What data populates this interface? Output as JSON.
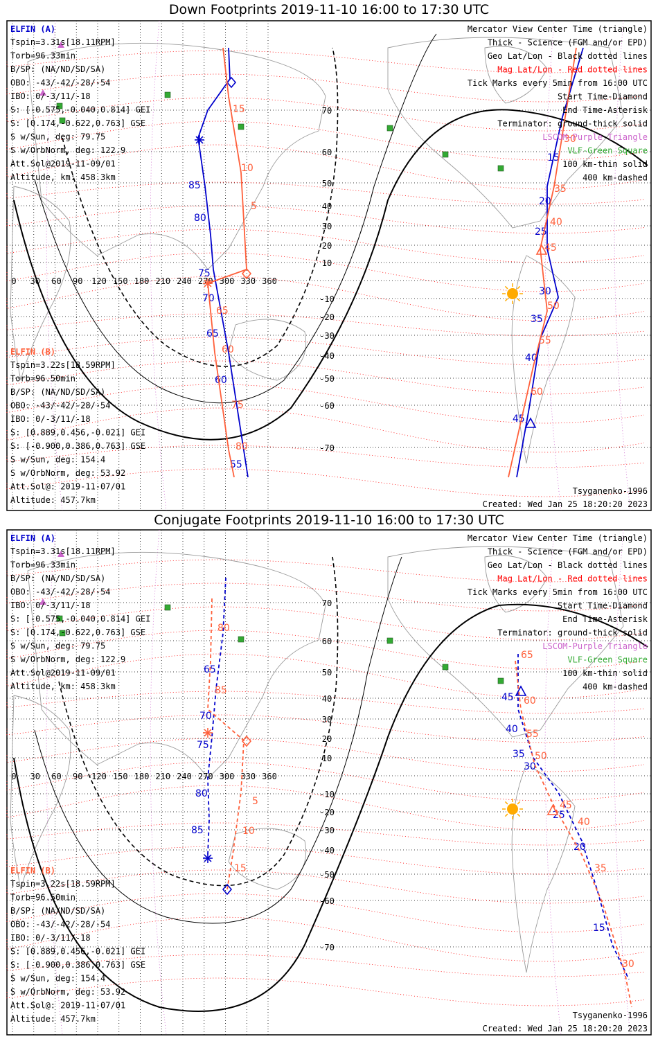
{
  "colors": {
    "elfin_a": "#0000cc",
    "elfin_b": "#ff5f3a",
    "geo_grid": "#000000",
    "mag_grid": "#ff0000",
    "lscom": "#cc66cc",
    "vlf": "#33aa33",
    "coast": "#9a9a9a",
    "sun": "#ffaa00"
  },
  "panels": [
    {
      "title": "Down Footprints 2019-11-10 16:00 to 17:30 UTC",
      "elfin_a": {
        "header": "ELFIN (A)",
        "lines": [
          "Tspin=3.31s[18.11RPM]",
          "Torb=96.33min",
          "B/SP: (NA/ND/SD/SA)",
          "OBO: -43/-42/-28/-54",
          "IBO: 0/-3/11/-18",
          "S: [-0.575,-0.040,0.814] GEI",
          "S: [0.174,-0.622,0.763] GSE",
          "S w/Sun, deg: 79.75",
          "S w/OrbNorm, deg: 122.9",
          "Att.Sol@2019-11-09/01",
          "Altitude, km: 458.3km"
        ]
      },
      "elfin_b": {
        "header": "ELFIN (B)",
        "lines": [
          "Tspin=3.22s[18.59RPM]",
          "Torb=96.50min",
          "B/SP: (NA/ND/SD/SA)",
          "OBO: -43/-42/-28/-54",
          "IBO: 0/-3/11/-18",
          "S: [0.889,0.456,-0.021] GEI",
          "S: [-0.900,0.386,0.763] GSE",
          "S w/Sun, deg: 154.4",
          "S w/OrbNorm, deg: 53.92",
          "Att.Sol@: 2019-11-07/01",
          "Altitude: 457.7km"
        ]
      },
      "legend": [
        {
          "text": "Mercator View Center Time (triangle)",
          "color": "#000000"
        },
        {
          "text": "Thick - Science (FGM and/or EPD)",
          "color": "#000000"
        },
        {
          "text": "Geo Lat/Lon - Black dotted lines",
          "color": "#000000"
        },
        {
          "text": "Mag Lat/Lon - Red dotted lines",
          "color": "#ff0000"
        },
        {
          "text": "Tick Marks every 5min from 16:00 UTC",
          "color": "#000000"
        },
        {
          "text": "Start Time-Diamond",
          "color": "#000000"
        },
        {
          "text": "End Time-Asterisk",
          "color": "#000000"
        },
        {
          "text": "Terminator: ground-thick solid",
          "color": "#000000"
        },
        {
          "text": "LSCOM-Purple Triangle",
          "color": "#cc66cc"
        },
        {
          "text": "VLF-Green Square",
          "color": "#33aa33"
        },
        {
          "text": "100 km-thin solid",
          "color": "#000000"
        },
        {
          "text": "400 km-dashed",
          "color": "#000000"
        }
      ],
      "model": "Tsyganenko-1996",
      "created": "Created: Wed Jan 25 18:20:20 2023",
      "lon_labels": [
        "0",
        "30",
        "60",
        "90",
        "120",
        "150",
        "180",
        "210",
        "240",
        "270",
        "300",
        "330",
        "360"
      ],
      "lat_labels": [
        "70",
        "60",
        "50",
        "40",
        "30",
        "20",
        "10",
        "-10",
        "-20",
        "-30",
        "-40",
        "-50",
        "-60",
        "-70"
      ],
      "tick_labels_a": [
        "15",
        "20",
        "25",
        "30",
        "35",
        "40",
        "45",
        "55",
        "60",
        "65",
        "70",
        "75",
        "80",
        "85"
      ],
      "tick_labels_b": [
        "15",
        "10",
        "5",
        "30",
        "35",
        "40",
        "45",
        "50",
        "55",
        "60",
        "65",
        "60",
        "75",
        "80"
      ]
    },
    {
      "title": "Conjugate Footprints 2019-11-10 16:00 to 17:30 UTC",
      "elfin_a": {
        "header": "ELFIN (A)",
        "lines": [
          "Tspin=3.31s[18.11RPM]",
          "Torb=96.33min",
          "B/SP: (NA/ND/SD/SA)",
          "OBO: -43/-42/-28/-54",
          "IBO: 0/-3/11/-18",
          "S: [-0.575,-0.040,0.814] GEI",
          "S: [0.174,-0.622,0.763] GSE",
          "S w/Sun, deg: 79.75",
          "S w/OrbNorm, deg: 122.9",
          "Att.Sol@2019-11-09/01",
          "Altitude, km: 458.3km"
        ]
      },
      "elfin_b": {
        "header": "ELFIN (B)",
        "lines": [
          "Tspin=3.22s[18.59RPM]",
          "Torb=96.50min",
          "B/SP: (NA/ND/SD/SA)",
          "OBO: -43/-42/-28/-54",
          "IBO: 0/-3/11/-18",
          "S: [0.889,0.456,-0.021] GEI",
          "S: [-0.900,0.386,0.763] GSE",
          "S w/Sun, deg: 154.4",
          "S w/OrbNorm, deg: 53.92",
          "Att.Sol@: 2019-11-07/01",
          "Altitude: 457.7km"
        ]
      },
      "legend": [
        {
          "text": "Mercator View Center Time (triangle)",
          "color": "#000000"
        },
        {
          "text": "Thick - Science (FGM and/or EPD)",
          "color": "#000000"
        },
        {
          "text": "Geo Lat/Lon - Black dotted lines",
          "color": "#000000"
        },
        {
          "text": "Mag Lat/Lon - Red dotted lines",
          "color": "#ff0000"
        },
        {
          "text": "Tick Marks every 5min from 16:00 UTC",
          "color": "#000000"
        },
        {
          "text": "Start Time-Diamond",
          "color": "#000000"
        },
        {
          "text": "End Time-Asterisk",
          "color": "#000000"
        },
        {
          "text": "Terminator: ground-thick solid",
          "color": "#000000"
        },
        {
          "text": "LSCOM-Purple Triangle",
          "color": "#cc66cc"
        },
        {
          "text": "VLF-Green Square",
          "color": "#33aa33"
        },
        {
          "text": "100 km-thin solid",
          "color": "#000000"
        },
        {
          "text": "400 km-dashed",
          "color": "#000000"
        }
      ],
      "model": "Tsyganenko-1996",
      "created": "Created: Wed Jan 25 18:20:20 2023",
      "lon_labels": [
        "0",
        "30",
        "60",
        "90",
        "120",
        "150",
        "180",
        "210",
        "240",
        "270",
        "300",
        "330",
        "360"
      ],
      "lat_labels": [
        "70",
        "60",
        "50",
        "40",
        "30",
        "20",
        "10",
        "-10",
        "-20",
        "-30",
        "-40",
        "-50",
        "-60",
        "-70"
      ],
      "tick_labels_a": [
        "65",
        "70",
        "75",
        "80",
        "85",
        "45",
        "40",
        "35",
        "30",
        "25",
        "20",
        "15"
      ],
      "tick_labels_b": [
        "80",
        "85",
        "5",
        "10",
        "15",
        "65",
        "60",
        "55",
        "50",
        "45",
        "40",
        "35",
        "30"
      ]
    }
  ]
}
